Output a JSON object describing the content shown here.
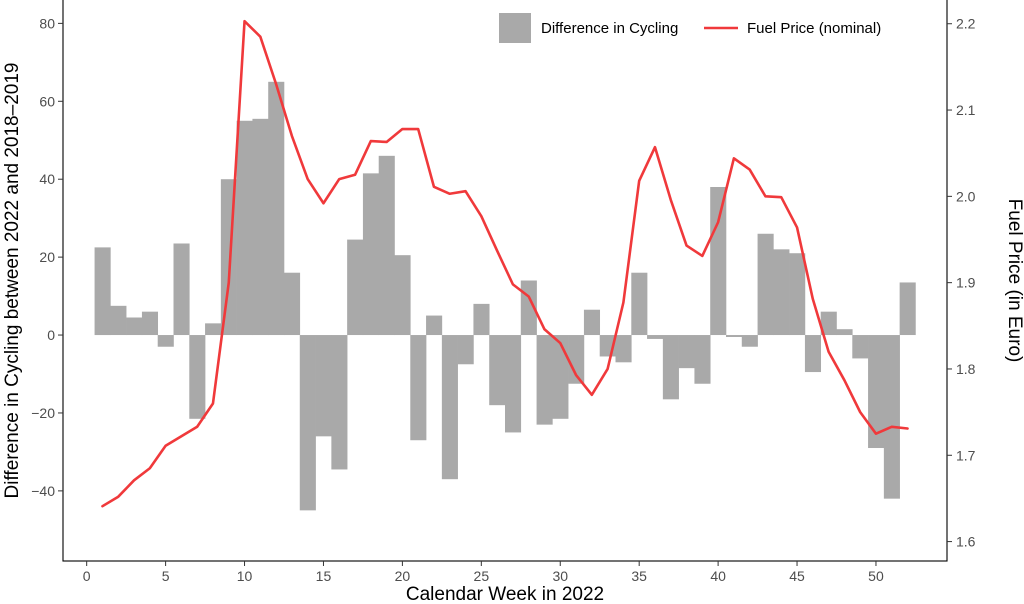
{
  "chart_data": {
    "type": "bar+line",
    "title": "",
    "xlabel": "Calendar Week in 2022",
    "ylabel_left": "Difference in Cycling between 2022 and 2018–2019",
    "ylabel_right": "Fuel Price (in Euro)",
    "xlim": [
      -1.5,
      54.5
    ],
    "ylim_left": [
      -58,
      86
    ],
    "ylim_right": [
      1.5775,
      2.2275
    ],
    "x_ticks": [
      0,
      5,
      10,
      15,
      20,
      25,
      30,
      35,
      40,
      45,
      50
    ],
    "y_left_ticks": [
      -40,
      -20,
      0,
      20,
      40,
      60,
      80
    ],
    "y_right_ticks": [
      1.6,
      1.7,
      1.8,
      1.9,
      2.0,
      2.1,
      2.2
    ],
    "legend_position": "top-right",
    "grid": false,
    "colors": {
      "bars": "#a9a9a9",
      "line": "#f0393b",
      "axis": "#000000",
      "tick_text": "#4d4d4d"
    },
    "weeks": [
      1,
      2,
      3,
      4,
      5,
      6,
      7,
      8,
      9,
      10,
      11,
      12,
      13,
      14,
      15,
      16,
      17,
      18,
      19,
      20,
      21,
      22,
      23,
      24,
      25,
      26,
      27,
      28,
      29,
      30,
      31,
      32,
      33,
      34,
      35,
      36,
      37,
      38,
      39,
      40,
      41,
      42,
      43,
      44,
      45,
      46,
      47,
      48,
      49,
      50,
      51,
      52
    ],
    "series": [
      {
        "name": "Difference in Cycling",
        "kind": "bar",
        "axis": "left",
        "values": [
          22.5,
          7.5,
          4.5,
          6,
          -3,
          23.5,
          -21.5,
          3,
          40,
          55,
          55.5,
          65,
          16,
          -45,
          -26,
          -34.5,
          24.5,
          41.5,
          46,
          20.5,
          -27,
          5,
          -37,
          -7.5,
          8,
          -18,
          -25,
          14,
          -23,
          -21.5,
          -12.5,
          6.5,
          -5.5,
          -7,
          16,
          -1,
          -16.5,
          -8.5,
          -12.5,
          38,
          -0.5,
          -3,
          26,
          22,
          21,
          -9.5,
          6,
          1.5,
          -6,
          -29,
          -42,
          13.5
        ]
      },
      {
        "name": "Fuel Price (nominal)",
        "kind": "line",
        "axis": "right",
        "values": [
          1.641,
          1.652,
          1.671,
          1.685,
          1.711,
          1.722,
          1.733,
          1.76,
          1.9,
          2.203,
          2.185,
          2.13,
          2.07,
          2.02,
          1.992,
          2.02,
          2.025,
          2.064,
          2.063,
          2.078,
          2.078,
          2.011,
          2.003,
          2.006,
          1.977,
          1.937,
          1.898,
          1.884,
          1.846,
          1.83,
          1.793,
          1.77,
          1.8,
          1.877,
          2.018,
          2.057,
          1.996,
          1.943,
          1.931,
          1.97,
          2.044,
          2.031,
          2.0,
          1.999,
          1.964,
          1.881,
          1.82,
          1.787,
          1.75,
          1.725,
          1.733,
          1.731
        ]
      }
    ]
  }
}
